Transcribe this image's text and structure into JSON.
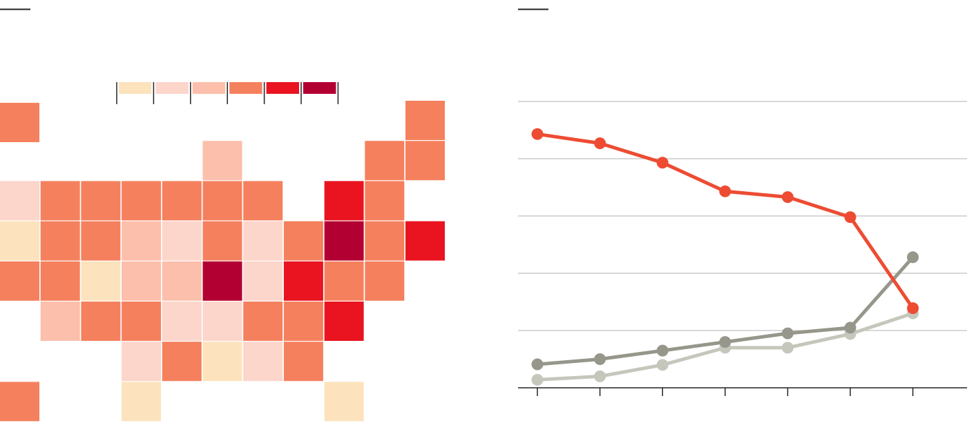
{
  "chart_data": [
    {
      "type": "heatmap",
      "description_role": "tile-grid-map",
      "legend": {
        "placement": "top-center",
        "bins": [
          {
            "color": "#fce3bd"
          },
          {
            "color": "#fcd5cb"
          },
          {
            "color": "#fcbfab"
          },
          {
            "color": "#f5805e"
          },
          {
            "color": "#e9141f"
          },
          {
            "color": "#b30032"
          }
        ]
      },
      "grid": {
        "rows": 8,
        "cols": 11
      },
      "tiles": [
        {
          "row": 0,
          "col": 0,
          "bin": 3
        },
        {
          "row": 0,
          "col": 10,
          "bin": 3
        },
        {
          "row": 1,
          "col": 5,
          "bin": 2
        },
        {
          "row": 1,
          "col": 9,
          "bin": 3
        },
        {
          "row": 1,
          "col": 10,
          "bin": 3
        },
        {
          "row": 2,
          "col": 0,
          "bin": 1
        },
        {
          "row": 2,
          "col": 1,
          "bin": 3
        },
        {
          "row": 2,
          "col": 2,
          "bin": 3
        },
        {
          "row": 2,
          "col": 3,
          "bin": 3
        },
        {
          "row": 2,
          "col": 4,
          "bin": 3
        },
        {
          "row": 2,
          "col": 5,
          "bin": 3
        },
        {
          "row": 2,
          "col": 6,
          "bin": 3
        },
        {
          "row": 2,
          "col": 8,
          "bin": 4
        },
        {
          "row": 2,
          "col": 9,
          "bin": 3
        },
        {
          "row": 3,
          "col": 0,
          "bin": 0
        },
        {
          "row": 3,
          "col": 1,
          "bin": 3
        },
        {
          "row": 3,
          "col": 2,
          "bin": 3
        },
        {
          "row": 3,
          "col": 3,
          "bin": 2
        },
        {
          "row": 3,
          "col": 4,
          "bin": 1
        },
        {
          "row": 3,
          "col": 5,
          "bin": 3
        },
        {
          "row": 3,
          "col": 6,
          "bin": 1
        },
        {
          "row": 3,
          "col": 7,
          "bin": 3
        },
        {
          "row": 3,
          "col": 8,
          "bin": 5
        },
        {
          "row": 3,
          "col": 9,
          "bin": 3
        },
        {
          "row": 3,
          "col": 10,
          "bin": 4
        },
        {
          "row": 4,
          "col": 0,
          "bin": 3
        },
        {
          "row": 4,
          "col": 1,
          "bin": 3
        },
        {
          "row": 4,
          "col": 2,
          "bin": 0
        },
        {
          "row": 4,
          "col": 3,
          "bin": 2
        },
        {
          "row": 4,
          "col": 4,
          "bin": 2
        },
        {
          "row": 4,
          "col": 5,
          "bin": 5
        },
        {
          "row": 4,
          "col": 6,
          "bin": 1
        },
        {
          "row": 4,
          "col": 7,
          "bin": 4
        },
        {
          "row": 4,
          "col": 8,
          "bin": 3
        },
        {
          "row": 4,
          "col": 9,
          "bin": 3
        },
        {
          "row": 5,
          "col": 1,
          "bin": 2
        },
        {
          "row": 5,
          "col": 2,
          "bin": 3
        },
        {
          "row": 5,
          "col": 3,
          "bin": 3
        },
        {
          "row": 5,
          "col": 4,
          "bin": 1
        },
        {
          "row": 5,
          "col": 5,
          "bin": 1
        },
        {
          "row": 5,
          "col": 6,
          "bin": 3
        },
        {
          "row": 5,
          "col": 7,
          "bin": 3
        },
        {
          "row": 5,
          "col": 8,
          "bin": 4
        },
        {
          "row": 6,
          "col": 3,
          "bin": 1
        },
        {
          "row": 6,
          "col": 4,
          "bin": 3
        },
        {
          "row": 6,
          "col": 5,
          "bin": 0
        },
        {
          "row": 6,
          "col": 6,
          "bin": 1
        },
        {
          "row": 6,
          "col": 7,
          "bin": 3
        },
        {
          "row": 7,
          "col": 0,
          "bin": 3
        },
        {
          "row": 7,
          "col": 3,
          "bin": 0
        },
        {
          "row": 7,
          "col": 8,
          "bin": 0
        }
      ]
    },
    {
      "type": "line",
      "x": [
        0,
        1,
        2,
        3,
        4,
        5,
        6
      ],
      "ylim": [
        0,
        5
      ],
      "grid": true,
      "yticks": [
        1,
        2,
        3,
        4,
        5
      ],
      "series": [
        {
          "color": "#ed4c33",
          "values": [
            4.43,
            4.27,
            3.93,
            3.43,
            3.33,
            2.98,
            1.39
          ]
        },
        {
          "color": "#97968b",
          "values": [
            0.41,
            0.5,
            0.65,
            0.8,
            0.95,
            1.05,
            2.28
          ]
        },
        {
          "color": "#c6c7bc",
          "values": [
            0.14,
            0.2,
            0.4,
            0.7,
            0.7,
            0.94,
            1.3
          ]
        }
      ],
      "colors": {
        "grid": "#cccccc",
        "axis": "#222222"
      }
    }
  ]
}
